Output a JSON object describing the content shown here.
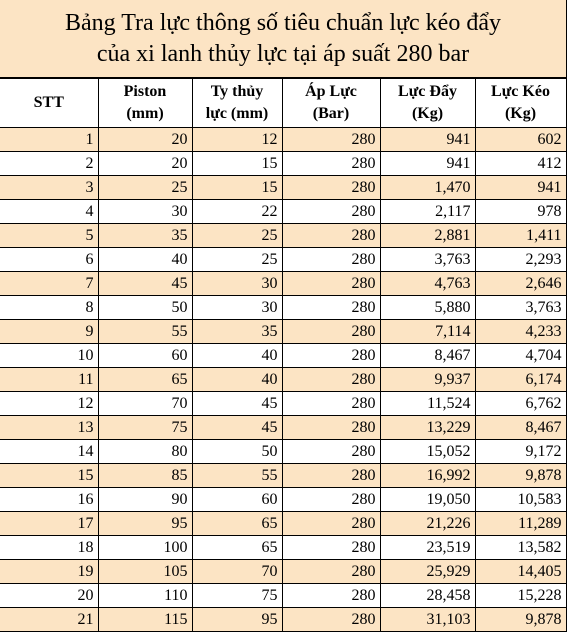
{
  "title": [
    "Bảng Tra lực thông số tiêu chuẩn lực kéo đẩy",
    "của xi lanh thủy lực tại áp suất 280 bar"
  ],
  "table": {
    "headers": [
      [
        "STT"
      ],
      [
        "Piston",
        "(mm)"
      ],
      [
        "Ty thủy",
        "lực (mm)"
      ],
      [
        "Áp Lực",
        "(Bar)"
      ],
      [
        "Lực Đẩy",
        "(Kg)"
      ],
      [
        "Lực Kéo",
        "(Kg)"
      ]
    ],
    "rows": [
      [
        "1",
        "20",
        "12",
        "280",
        "941",
        "602"
      ],
      [
        "2",
        "20",
        "15",
        "280",
        "941",
        "412"
      ],
      [
        "3",
        "25",
        "15",
        "280",
        "1,470",
        "941"
      ],
      [
        "4",
        "30",
        "22",
        "280",
        "2,117",
        "978"
      ],
      [
        "5",
        "35",
        "25",
        "280",
        "2,881",
        "1,411"
      ],
      [
        "6",
        "40",
        "25",
        "280",
        "3,763",
        "2,293"
      ],
      [
        "7",
        "45",
        "30",
        "280",
        "4,763",
        "2,646"
      ],
      [
        "8",
        "50",
        "30",
        "280",
        "5,880",
        "3,763"
      ],
      [
        "9",
        "55",
        "35",
        "280",
        "7,114",
        "4,233"
      ],
      [
        "10",
        "60",
        "40",
        "280",
        "8,467",
        "4,704"
      ],
      [
        "11",
        "65",
        "40",
        "280",
        "9,937",
        "6,174"
      ],
      [
        "12",
        "70",
        "45",
        "280",
        "11,524",
        "6,762"
      ],
      [
        "13",
        "75",
        "45",
        "280",
        "13,229",
        "8,467"
      ],
      [
        "14",
        "80",
        "50",
        "280",
        "15,052",
        "9,172"
      ],
      [
        "15",
        "85",
        "55",
        "280",
        "16,992",
        "9,878"
      ],
      [
        "16",
        "90",
        "60",
        "280",
        "19,050",
        "10,583"
      ],
      [
        "17",
        "95",
        "65",
        "280",
        "21,226",
        "11,289"
      ],
      [
        "18",
        "100",
        "65",
        "280",
        "23,519",
        "13,582"
      ],
      [
        "19",
        "105",
        "70",
        "280",
        "25,929",
        "14,405"
      ],
      [
        "20",
        "110",
        "75",
        "280",
        "28,458",
        "15,228"
      ],
      [
        "21",
        "115",
        "95",
        "280",
        "31,103",
        "9,878"
      ]
    ]
  }
}
